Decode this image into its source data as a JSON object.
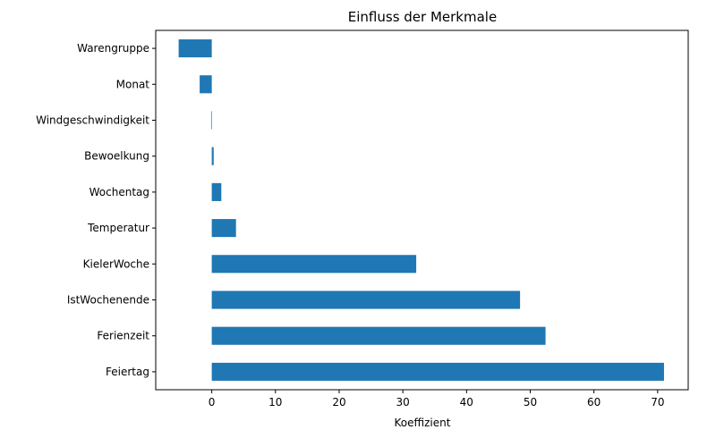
{
  "chart_data": {
    "type": "bar",
    "orientation": "horizontal",
    "title": "Einfluss der Merkmale",
    "xlabel": "Koeffizient",
    "ylabel": "",
    "xlim": [
      -8.8,
      74.8
    ],
    "xticks": [
      0,
      10,
      20,
      30,
      40,
      50,
      60,
      70
    ],
    "xtick_labels": [
      "0",
      "10",
      "20",
      "30",
      "40",
      "50",
      "60",
      "70"
    ],
    "categories": [
      "Warengruppe",
      "Monat",
      "Windgeschwindigkeit",
      "Bewoelkung",
      "Wochentag",
      "Temperatur",
      "KielerWoche",
      "IstWochenende",
      "Ferienzeit",
      "Feiertag"
    ],
    "values": [
      -5.2,
      -1.9,
      -0.1,
      0.3,
      1.5,
      3.8,
      32.1,
      48.4,
      52.4,
      71.0
    ],
    "bar_color": "#1f77b4",
    "grid": false,
    "legend": "none"
  }
}
